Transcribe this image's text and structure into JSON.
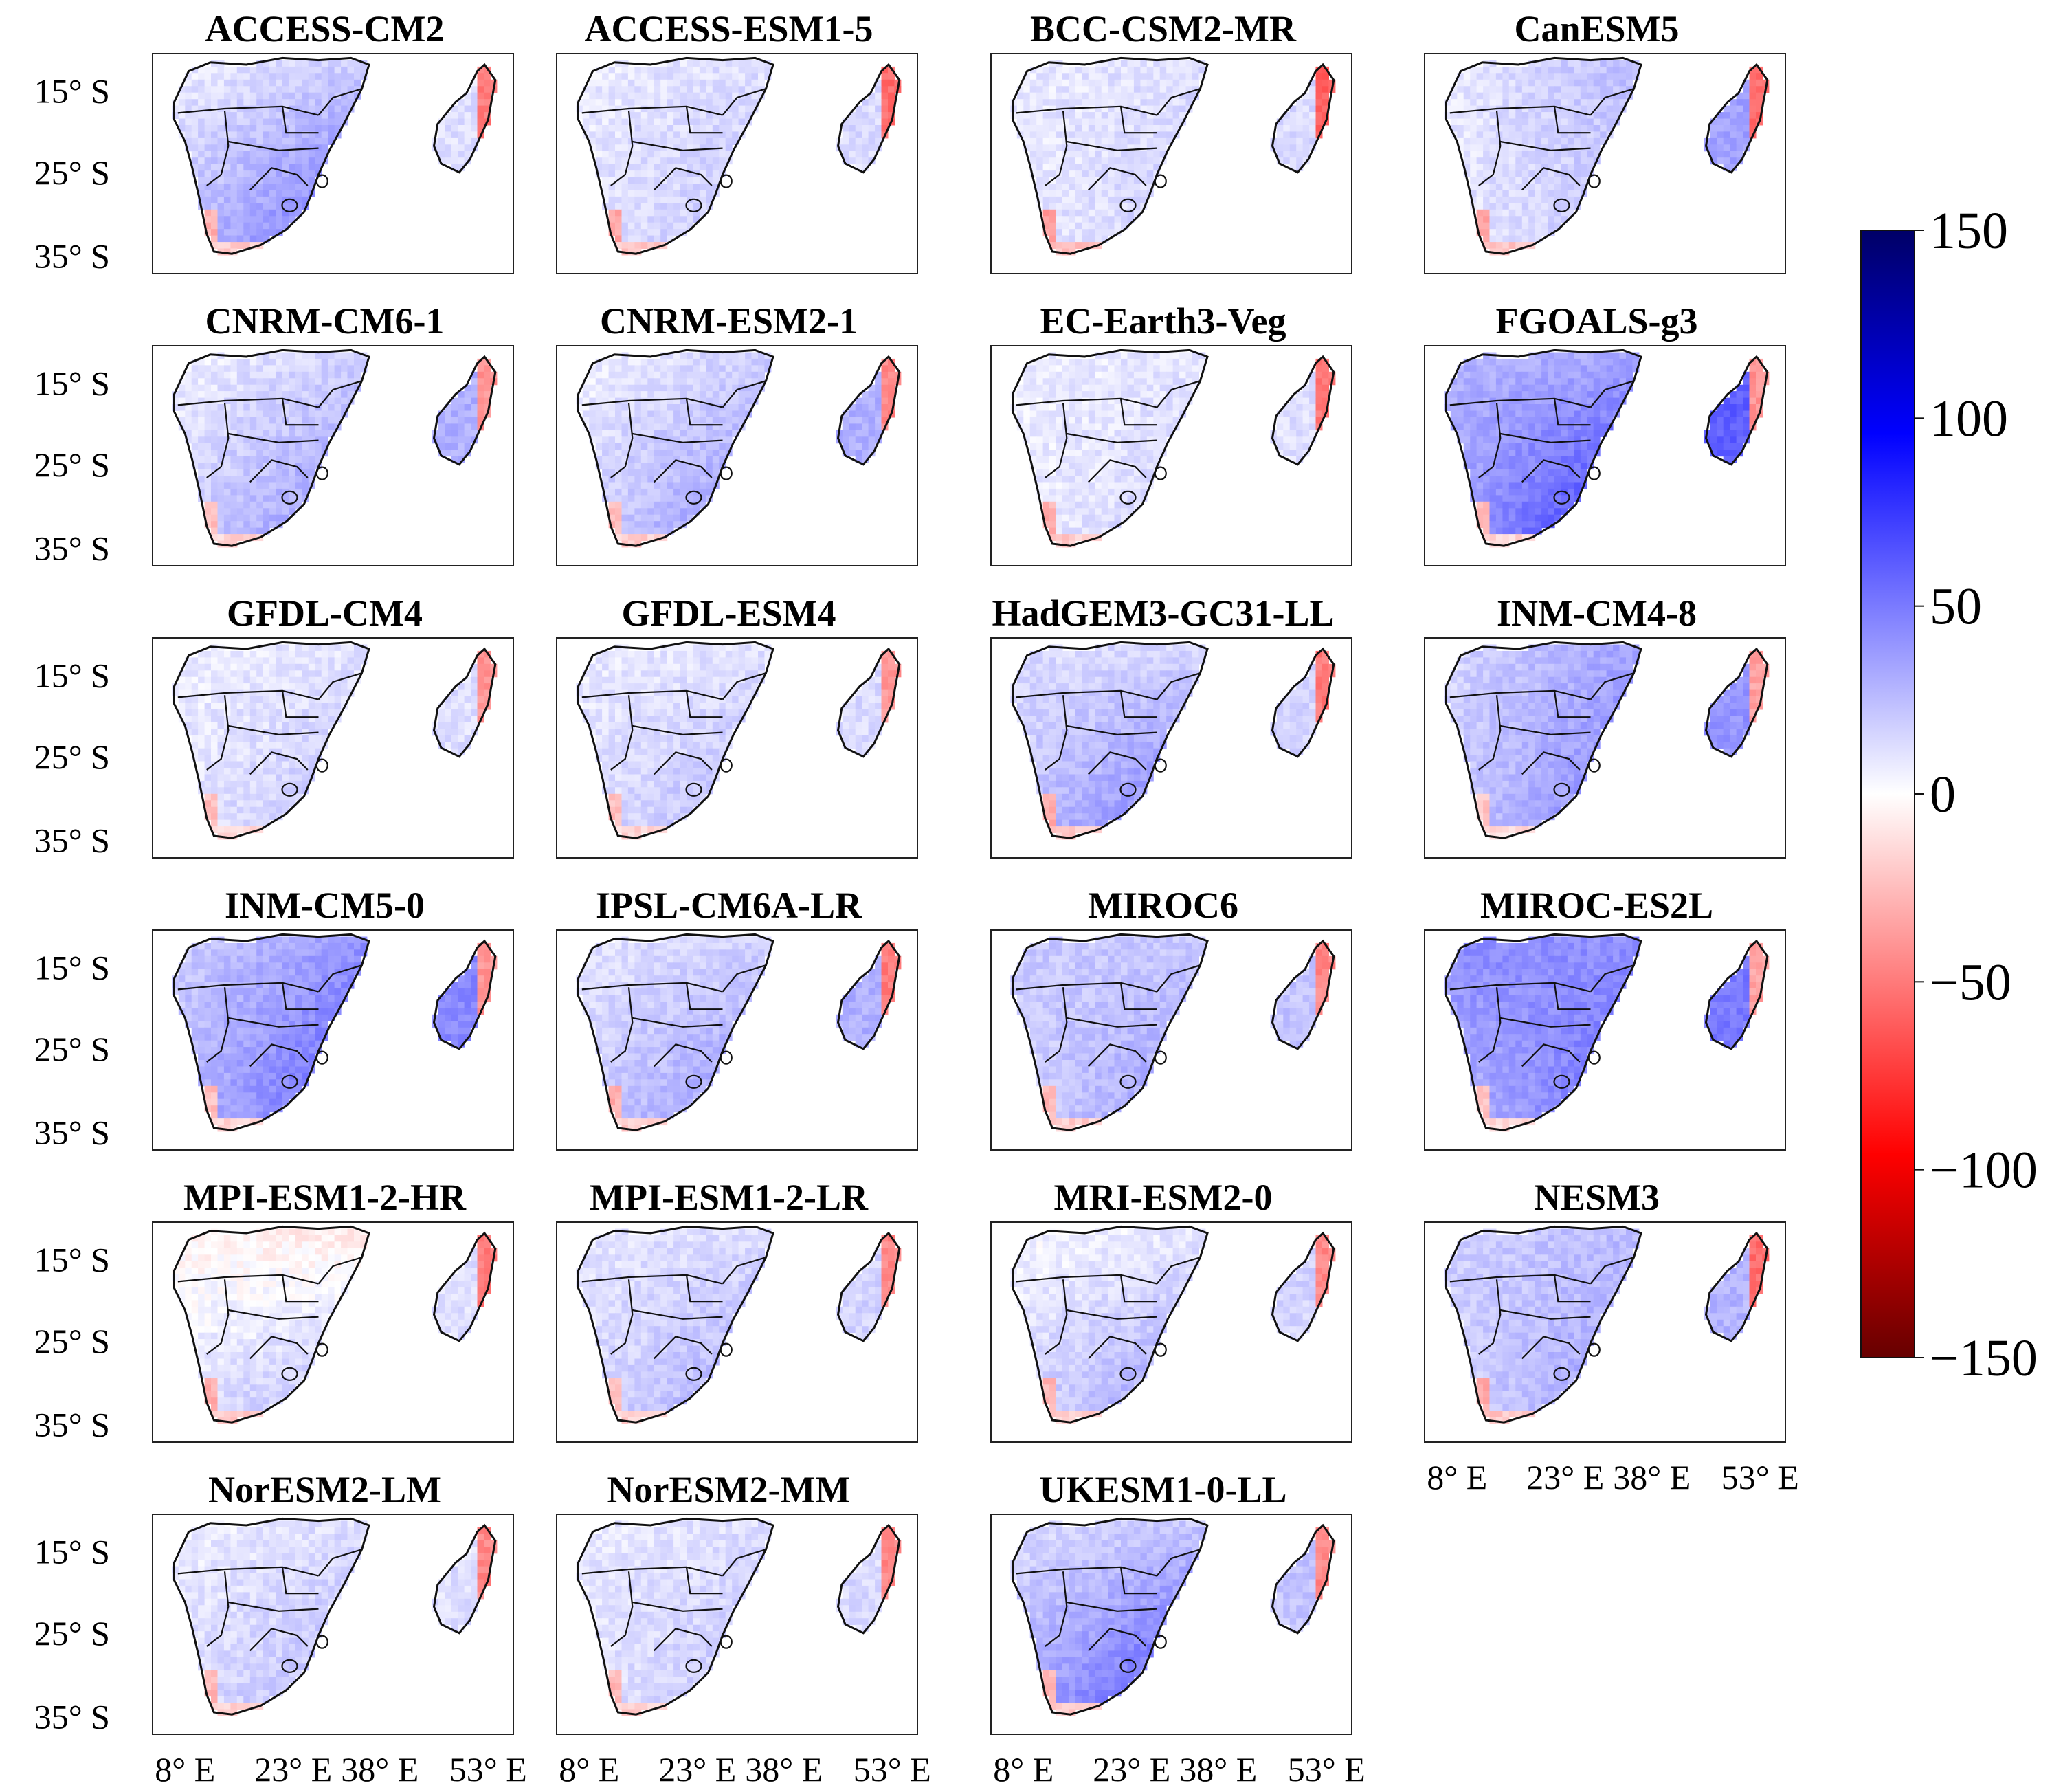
{
  "chart_data": {
    "type": "heatmap",
    "description_kind": "small-multiple maps of Southern Africa and Madagascar, one per climate model",
    "models": [
      {
        "name": "ACCESS-CM2",
        "west": 6,
        "east": 18,
        "south": 60,
        "madagascar": 12,
        "red_coast": 50
      },
      {
        "name": "ACCESS-ESM1-5",
        "west": 8,
        "east": 12,
        "south": 25,
        "madagascar": 14,
        "red_coast": 55
      },
      {
        "name": "BCC-CSM2-MR",
        "west": 8,
        "east": 12,
        "south": 20,
        "madagascar": 14,
        "red_coast": 60
      },
      {
        "name": "CanESM5",
        "west": 8,
        "east": 25,
        "south": 22,
        "madagascar": 35,
        "red_coast": 55
      },
      {
        "name": "CNRM-CM6-1",
        "west": 4,
        "east": 18,
        "south": 45,
        "madagascar": 30,
        "red_coast": 40
      },
      {
        "name": "CNRM-ESM2-1",
        "west": 4,
        "east": 18,
        "south": 45,
        "madagascar": 30,
        "red_coast": 45
      },
      {
        "name": "EC-Earth3-Veg",
        "west": 6,
        "east": 10,
        "south": 18,
        "madagascar": 12,
        "red_coast": 50
      },
      {
        "name": "FGOALS-g3",
        "west": 28,
        "east": 30,
        "south": 85,
        "madagascar": 60,
        "red_coast": 40
      },
      {
        "name": "GFDL-CM4",
        "west": 6,
        "east": 10,
        "south": 25,
        "madagascar": 12,
        "red_coast": 40
      },
      {
        "name": "GFDL-ESM4",
        "west": 8,
        "east": 10,
        "south": 30,
        "madagascar": 14,
        "red_coast": 40
      },
      {
        "name": "HadGEM3-GC31-LL",
        "west": 12,
        "east": 14,
        "south": 55,
        "madagascar": 16,
        "red_coast": 50
      },
      {
        "name": "INM-CM4-8",
        "west": 14,
        "east": 35,
        "south": 50,
        "madagascar": 40,
        "red_coast": 35
      },
      {
        "name": "INM-CM5-0",
        "west": 18,
        "east": 40,
        "south": 65,
        "madagascar": 45,
        "red_coast": 40
      },
      {
        "name": "IPSL-CM6A-LR",
        "west": 10,
        "east": 16,
        "south": 45,
        "madagascar": 30,
        "red_coast": 50
      },
      {
        "name": "MIROC6",
        "west": 20,
        "east": 20,
        "south": 40,
        "madagascar": 22,
        "red_coast": 45
      },
      {
        "name": "MIROC-ES2L",
        "west": 45,
        "east": 40,
        "south": 60,
        "madagascar": 50,
        "red_coast": 35
      },
      {
        "name": "MPI-ESM1-2-HR",
        "west": -5,
        "east": -10,
        "south": 30,
        "madagascar": 12,
        "red_coast": 50
      },
      {
        "name": "MPI-ESM1-2-LR",
        "west": 10,
        "east": 12,
        "south": 35,
        "madagascar": 16,
        "red_coast": 45
      },
      {
        "name": "MRI-ESM2-0",
        "west": 2,
        "east": 8,
        "south": 40,
        "madagascar": 16,
        "red_coast": 45
      },
      {
        "name": "NESM3",
        "west": 18,
        "east": 25,
        "south": 40,
        "madagascar": 28,
        "red_coast": 55
      },
      {
        "name": "NorESM2-LM",
        "west": 6,
        "east": 12,
        "south": 30,
        "madagascar": 12,
        "red_coast": 45
      },
      {
        "name": "NorESM2-MM",
        "west": 8,
        "east": 12,
        "south": 25,
        "madagascar": 14,
        "red_coast": 45
      },
      {
        "name": "UKESM1-0-LL",
        "west": 12,
        "east": 18,
        "south": 75,
        "madagascar": 22,
        "red_coast": 45
      }
    ],
    "y_ticks": [
      "15° S",
      "25° S",
      "35° S"
    ],
    "x_ticks": [
      "8° E",
      "23° E",
      "38° E",
      "53° E"
    ],
    "colorbar": {
      "min": -150,
      "max": 150,
      "ticks": [
        "150",
        "100",
        "50",
        "0",
        "−50",
        "−100",
        "−150"
      ],
      "colors": {
        "max": "#000066",
        "high": "#0000ff",
        "mid": "#ffffff",
        "low": "#ff0000",
        "min": "#660000"
      }
    }
  }
}
